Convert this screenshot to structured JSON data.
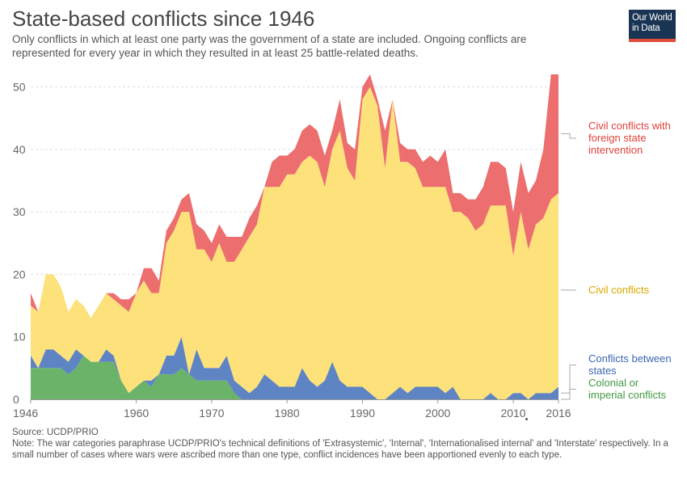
{
  "header": {
    "title": "State-based conflicts since 1946",
    "subtitle": "Only conflicts in which at least one party was the government of a state are included. Ongoing conflicts are represented for every year in which they resulted in at least 25 battle-related deaths."
  },
  "logo": {
    "line1": "Our World",
    "line2": "in Data"
  },
  "footer": {
    "source": "Source: UCDP/PRIO",
    "note": "Note: The war categories paraphrase UCDP/PRIO's technical definitions of 'Extrasystemic', 'Internal', 'Internationalised internal' and 'Interstate' respectively. In a small number of cases where wars were ascribed more than one type, conflict incidences have been apportioned evenly to each type."
  },
  "chart_data": {
    "type": "area",
    "stacked": true,
    "title": "State-based conflicts since 1946",
    "x_ticks": [
      "1946",
      "1960",
      "1970",
      "1980",
      "1990",
      "2000",
      "2010",
      "2016"
    ],
    "y_ticks": [
      "0",
      "10",
      "20",
      "30",
      "40",
      "50"
    ],
    "ylim": [
      0,
      52
    ],
    "grid": "horizontal dashed",
    "legend": "right, labels at series end",
    "x": [
      1946,
      1947,
      1948,
      1949,
      1950,
      1951,
      1952,
      1953,
      1954,
      1955,
      1956,
      1957,
      1958,
      1959,
      1960,
      1961,
      1962,
      1963,
      1964,
      1965,
      1966,
      1967,
      1968,
      1969,
      1970,
      1971,
      1972,
      1973,
      1974,
      1975,
      1976,
      1977,
      1978,
      1979,
      1980,
      1981,
      1982,
      1983,
      1984,
      1985,
      1986,
      1987,
      1988,
      1989,
      1990,
      1991,
      1992,
      1993,
      1994,
      1995,
      1996,
      1997,
      1998,
      1999,
      2000,
      2001,
      2002,
      2003,
      2004,
      2005,
      2006,
      2007,
      2008,
      2009,
      2010,
      2011,
      2012,
      2013,
      2014,
      2015,
      2016
    ],
    "series": [
      {
        "name": "Colonial or imperial conflicts",
        "color": "#6ab369",
        "values": [
          5,
          5,
          5,
          5,
          5,
          4,
          5,
          7,
          6,
          6,
          6,
          6,
          3,
          1,
          2,
          3,
          2,
          4,
          4,
          4,
          5,
          4,
          3,
          3,
          3,
          3,
          3,
          1,
          0,
          0,
          0,
          0,
          0,
          0,
          0,
          0,
          0,
          0,
          0,
          0,
          0,
          0,
          0,
          0,
          0,
          0,
          0,
          0,
          0,
          0,
          0,
          0,
          0,
          0,
          0,
          0,
          0,
          0,
          0,
          0,
          0,
          0,
          0,
          0,
          0,
          0,
          0,
          0,
          0,
          0,
          0
        ]
      },
      {
        "name": "Conflicts between states",
        "color": "#5e84c4",
        "values": [
          2,
          0,
          3,
          3,
          2,
          2,
          3,
          0,
          0,
          0,
          2,
          1,
          0,
          0,
          0,
          0,
          1,
          0,
          3,
          3,
          5,
          0,
          5,
          2,
          2,
          2,
          4,
          2,
          2,
          1,
          2,
          4,
          3,
          2,
          2,
          2,
          5,
          3,
          2,
          3,
          6,
          3,
          2,
          2,
          2,
          1,
          0,
          0,
          1,
          2,
          1,
          2,
          2,
          2,
          2,
          1,
          2,
          0,
          0,
          0,
          0,
          1,
          0,
          0,
          1,
          1,
          0,
          1,
          1,
          1,
          2
        ]
      },
      {
        "name": "Civil conflicts",
        "color": "#fde17a",
        "values": [
          8,
          9,
          12,
          12,
          11,
          8,
          8,
          8,
          7,
          9,
          9,
          9,
          12,
          13,
          15,
          16,
          14,
          13,
          18,
          20,
          20,
          26,
          16,
          19,
          17,
          20,
          15,
          19,
          22,
          25,
          26,
          30,
          31,
          32,
          34,
          34,
          33,
          36,
          36,
          31,
          34,
          40,
          35,
          33,
          46,
          49,
          47,
          37,
          47,
          36,
          37,
          35,
          32,
          32,
          32,
          33,
          28,
          30,
          29,
          27,
          28,
          30,
          31,
          31,
          22,
          29,
          24,
          27,
          28,
          31,
          31
        ]
      },
      {
        "name": "Civil conflicts with foreign state intervention",
        "color": "#ec6e6e",
        "values": [
          2,
          0,
          0,
          0,
          0,
          0,
          0,
          0,
          0,
          0,
          0,
          1,
          1,
          2,
          0,
          2,
          4,
          2,
          2,
          2,
          2,
          3,
          4,
          3,
          3,
          3,
          4,
          4,
          2,
          3,
          3,
          0,
          4,
          5,
          3,
          4,
          5,
          5,
          5,
          5,
          3,
          5,
          4,
          5,
          2,
          2,
          1,
          6,
          0,
          3,
          2,
          3,
          4,
          5,
          4,
          6,
          3,
          3,
          3,
          5,
          6,
          7,
          7,
          6,
          7,
          8,
          9,
          7,
          11,
          20,
          19
        ]
      }
    ],
    "labels": {
      "foreign": [
        "Civil conflicts with",
        "foreign state",
        "intervention"
      ],
      "civil": [
        "Civil conflicts"
      ],
      "between": [
        "Conflicts between",
        "states"
      ],
      "colonial": [
        "Colonial or",
        "imperial conflicts"
      ]
    }
  }
}
